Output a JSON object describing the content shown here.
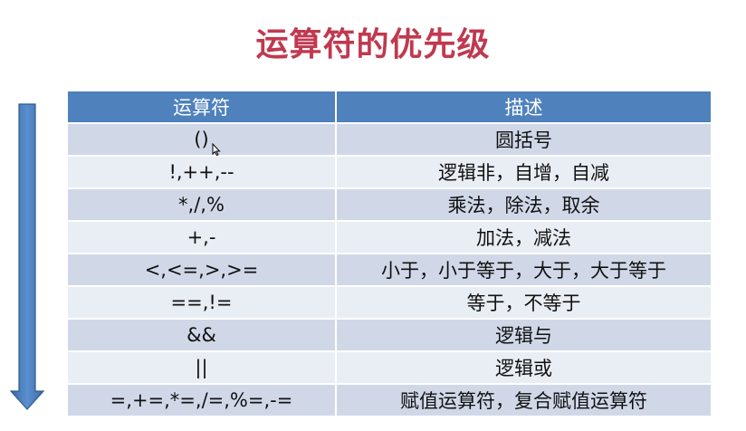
{
  "slide": {
    "title": "运算符的优先级"
  },
  "table": {
    "headers": [
      "运算符",
      "描述"
    ],
    "rows": [
      {
        "op": "()",
        "desc": "圆括号"
      },
      {
        "op": "!,++,--",
        "desc": "逻辑非，自增，自减"
      },
      {
        "op": "*,/,%",
        "desc": "乘法，除法，取余"
      },
      {
        "op": "+,-",
        "desc": "加法，减法"
      },
      {
        "op": "<,<=,>,>=",
        "desc": "小于，小于等于，大于，大于等于"
      },
      {
        "op": "==,!=",
        "desc": "等于，不等于"
      },
      {
        "op": "&&",
        "desc": "逻辑与"
      },
      {
        "op": "||",
        "desc": "逻辑或"
      },
      {
        "op": "=,+=,*=,/=,%=,-=",
        "desc": "赋值运算符，复合赋值运算符"
      }
    ]
  },
  "colors": {
    "title": "#c0394f",
    "header_bg": "#4f81bd",
    "row_odd": "#d0d8e8",
    "row_even": "#e9edf4",
    "arrow": "#4f81bd"
  },
  "icons": {
    "arrow": "down-arrow-icon",
    "cursor": "mouse-cursor-icon"
  }
}
